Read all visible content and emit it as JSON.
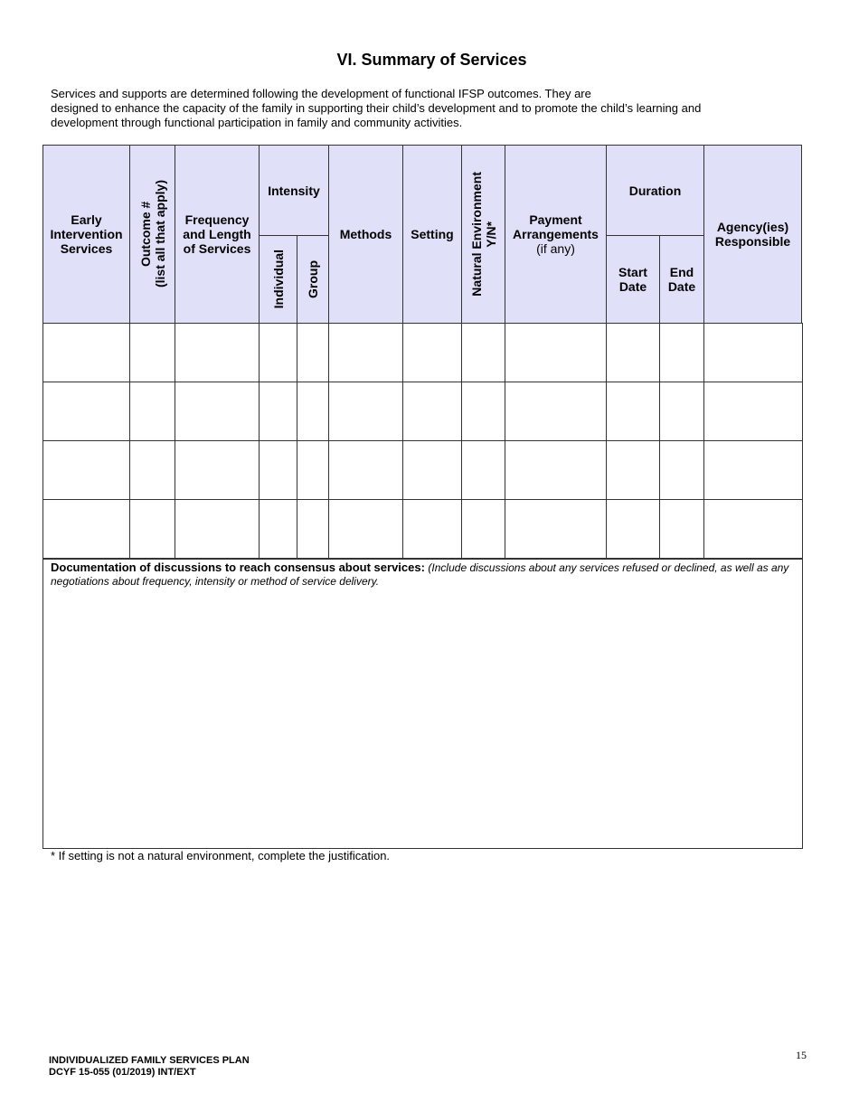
{
  "title": "VI. Summary of Services",
  "intro": [
    "Services and supports are determined following the development of functional IFSP outcomes.  They are",
    "designed to enhance the capacity of the family in supporting their child’s development and to  promote the child’s learning and",
    "development through functional participation in family and community activities."
  ],
  "table": {
    "header_bg": "#e0e0f8",
    "headers": {
      "ei_services": "Early Intervention Services",
      "outcome": "Outcome #",
      "outcome_sub": "(list all that apply)",
      "frequency": "Frequency and Length of Services",
      "intensity": "Intensity",
      "individual": "Individual",
      "group": "Group",
      "methods": "Methods",
      "setting": "Setting",
      "natural_env": "Natural Environment",
      "natural_env_sub": "Y/N*",
      "payment": "Payment Arrangements",
      "payment_sub": "(if any)",
      "duration": "Duration",
      "start_date": "Start Date",
      "end_date": "End Date",
      "agency": "Agency(ies) Responsible"
    },
    "rows": [
      [
        "",
        "",
        "",
        "",
        "",
        "",
        "",
        "",
        "",
        "",
        "",
        ""
      ],
      [
        "",
        "",
        "",
        "",
        "",
        "",
        "",
        "",
        "",
        "",
        "",
        ""
      ],
      [
        "",
        "",
        "",
        "",
        "",
        "",
        "",
        "",
        "",
        "",
        "",
        ""
      ],
      [
        "",
        "",
        "",
        "",
        "",
        "",
        "",
        "",
        "",
        "",
        "",
        ""
      ]
    ]
  },
  "documentation": {
    "label": "Documentation of discussions to reach consensus about services:",
    "hint": "(Include discussions about any services refused or declined, as well as any negotiations about frequency, intensity or method of service delivery."
  },
  "note": "* If setting is not a natural environment, complete the justification.",
  "footer": {
    "line1": "INDIVIDUALIZED FAMILY SERVICES PLAN",
    "line2": "DCYF 15-055 (01/2019) INT/EXT",
    "page": "15"
  }
}
